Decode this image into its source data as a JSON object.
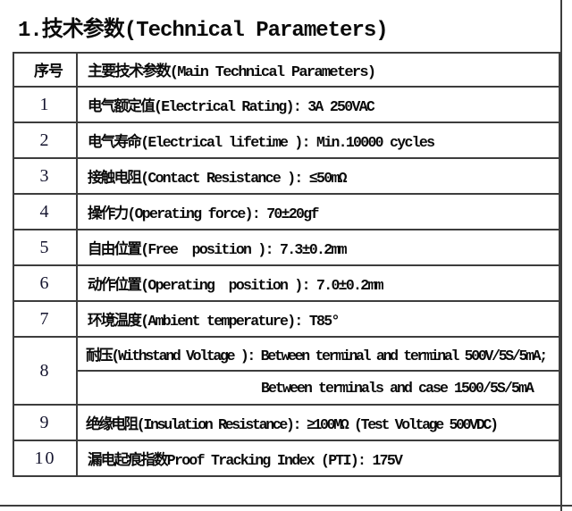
{
  "page": {
    "title": "1.技术参数(Technical Parameters)"
  },
  "table": {
    "header": {
      "col1": "序号",
      "col2": "主要技术参数(Main Technical Parameters)"
    },
    "rows": [
      {
        "no": "1",
        "text": "电气额定值(Electrical Rating): 3A 250VAC"
      },
      {
        "no": "2",
        "text": "电气寿命(Electrical lifetime ): Min.10000 cycles"
      },
      {
        "no": "3",
        "text": "接触电阻(Contact Resistance ): ≤50mΩ"
      },
      {
        "no": "4",
        "text": "操作力(Operating force): 70±20gf"
      },
      {
        "no": "5",
        "text": "自由位置(Free  position ): 7.3±0.2mm"
      },
      {
        "no": "6",
        "text": "动作位置(Operating  position ): 7.0±0.2mm"
      },
      {
        "no": "7",
        "text": "环境温度(Ambient temperature): T85°"
      },
      {
        "no": "8",
        "line1": "耐压(Withstand Voltage ): Between terminal and terminal 500V/5S/5mA;",
        "line2": "Between terminals and case 1500/5S/5mA"
      },
      {
        "no": "9",
        "text": "绝缘电阻(Insulation Resistance): ≥100MΩ (Test Voltage 500VDC)"
      },
      {
        "no": "10",
        "text": "漏电起痕指数Proof Tracking Index (PTI): 175V"
      }
    ]
  },
  "colors": {
    "border": "#3d3d3d",
    "text": "#0a0a0a",
    "background": "#ffffff"
  }
}
